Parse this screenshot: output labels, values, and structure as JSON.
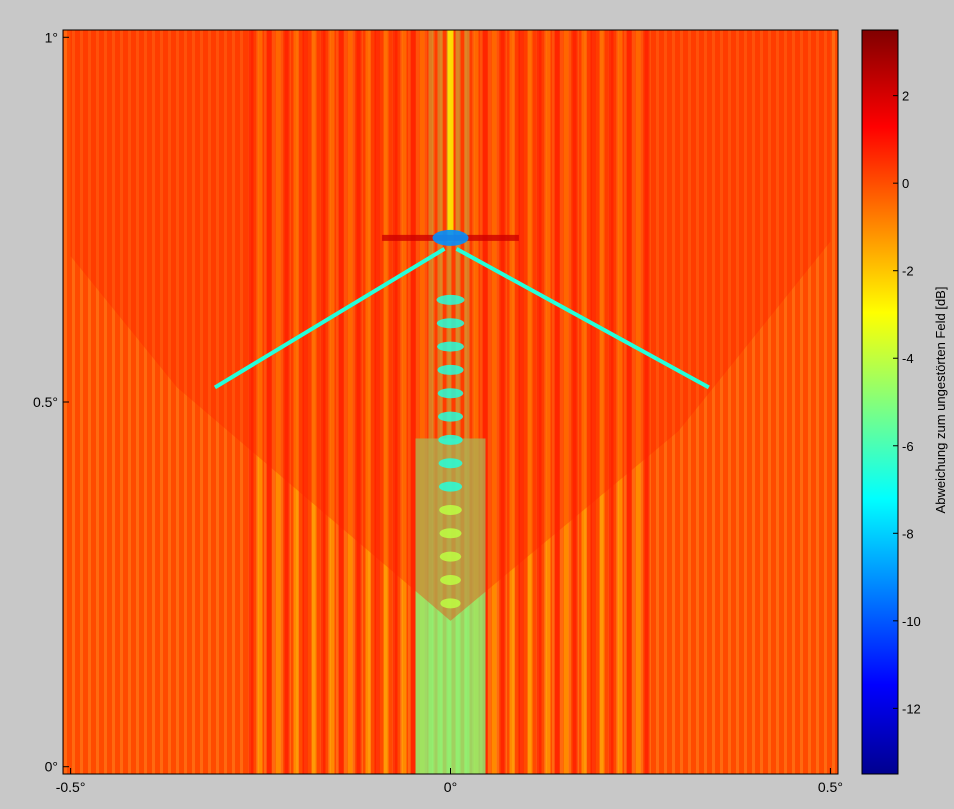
{
  "chart_data": {
    "type": "heatmap",
    "title": "",
    "xlabel": "",
    "ylabel": "",
    "x_ticks": [
      {
        "value": -0.5,
        "label": "-0.5°"
      },
      {
        "value": 0,
        "label": "0°"
      },
      {
        "value": 0.5,
        "label": "0.5°"
      }
    ],
    "y_ticks": [
      {
        "value": 0,
        "label": "0°"
      },
      {
        "value": 0.5,
        "label": "0.5°"
      },
      {
        "value": 1,
        "label": "1°"
      }
    ],
    "xlim": [
      -0.51,
      0.51
    ],
    "ylim": [
      -0.01,
      1.01
    ],
    "colorbar": {
      "label": "Abweichung zum ungestörten Feld [dB]",
      "range": [
        -13.5,
        3.5
      ],
      "colormap": "jet",
      "ticks": [
        {
          "value": 2,
          "label": "2"
        },
        {
          "value": 0,
          "label": "0"
        },
        {
          "value": -2,
          "label": "-2"
        },
        {
          "value": -4,
          "label": "-4"
        },
        {
          "value": -6,
          "label": "-6"
        },
        {
          "value": -8,
          "label": "-8"
        },
        {
          "value": -10,
          "label": "-10"
        },
        {
          "value": -12,
          "label": "-12"
        }
      ]
    },
    "background_value": 0
  },
  "colors": {
    "figure_bg": "#c8c8c8",
    "jet_stops": [
      "#00008f",
      "#0000ff",
      "#00ffff",
      "#ffff00",
      "#ff0000",
      "#800000"
    ]
  }
}
